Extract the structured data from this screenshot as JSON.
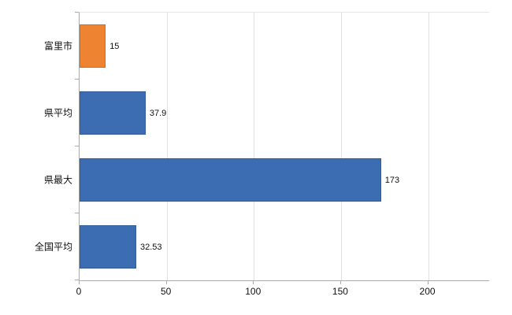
{
  "chart_data": {
    "type": "bar",
    "orientation": "horizontal",
    "title": "",
    "xlabel": "",
    "ylabel": "",
    "categories": [
      "富里市",
      "県平均",
      "県最大",
      "全国平均"
    ],
    "values": [
      15,
      37.9,
      173,
      32.53
    ],
    "value_labels": [
      "15",
      "37.9",
      "173",
      "32.53"
    ],
    "bar_colors": [
      "#ee8331",
      "#3c6db3",
      "#3c6db3",
      "#3c6db3"
    ],
    "x_ticks": [
      0,
      50,
      100,
      150,
      200
    ],
    "x_tick_labels": [
      "0",
      "50",
      "100",
      "150",
      "200"
    ],
    "xlim": [
      0,
      235
    ],
    "grid": "vertical",
    "legend": "none",
    "colors": {
      "highlight_bar": "#ee8331",
      "default_bar": "#3c6db3",
      "axis_line": "#ababab",
      "gridline": "#e2e2e2",
      "text": "#111111",
      "background": "#ffffff"
    }
  }
}
